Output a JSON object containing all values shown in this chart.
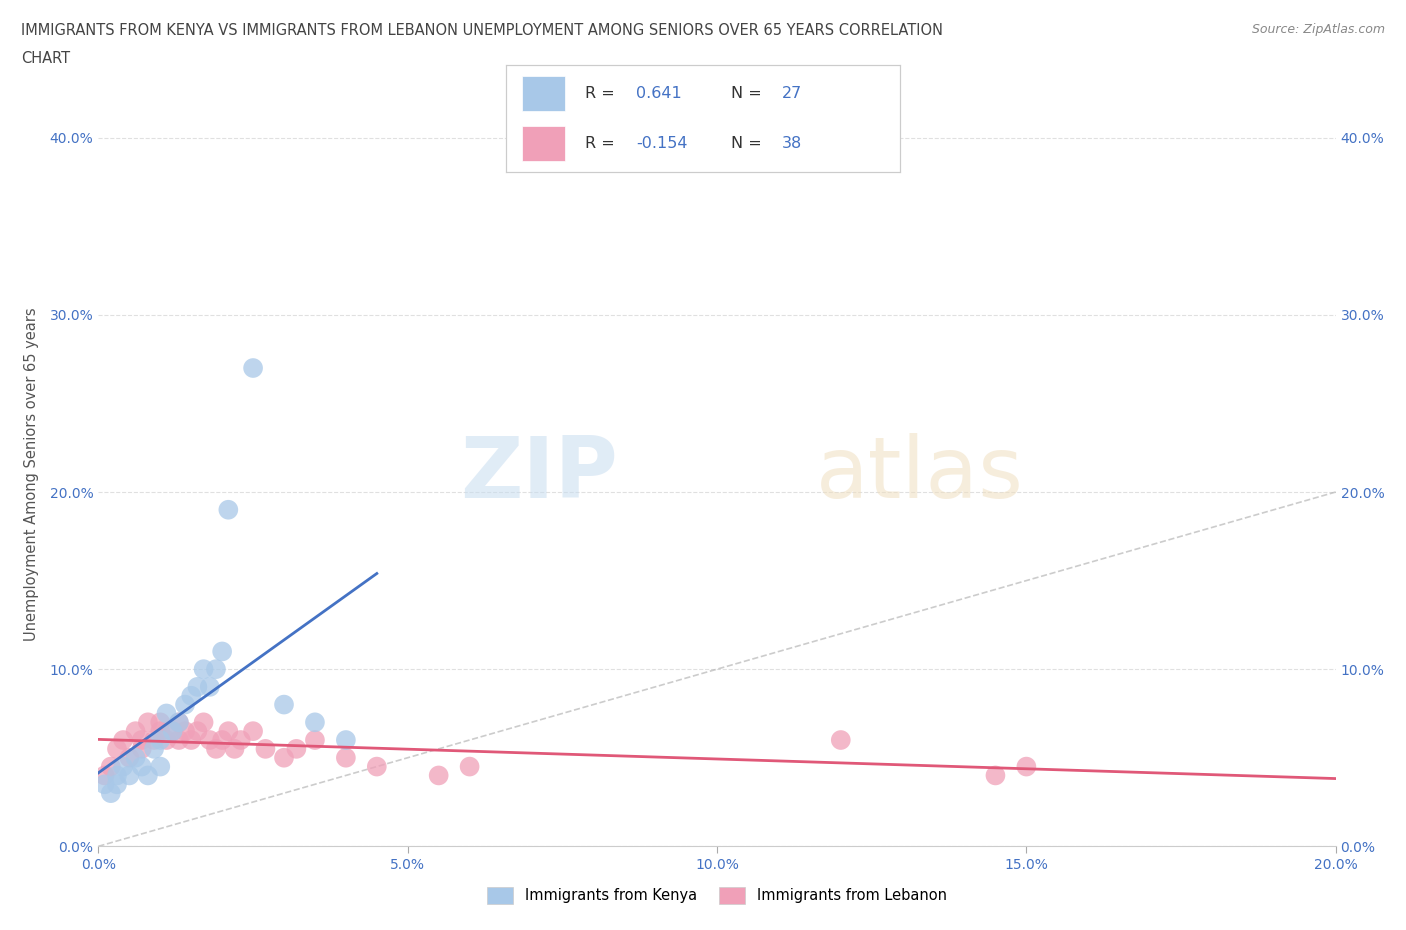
{
  "title_line1": "IMMIGRANTS FROM KENYA VS IMMIGRANTS FROM LEBANON UNEMPLOYMENT AMONG SENIORS OVER 65 YEARS CORRELATION",
  "title_line2": "CHART",
  "source": "Source: ZipAtlas.com",
  "ylabel": "Unemployment Among Seniors over 65 years",
  "xlim": [
    0.0,
    0.2
  ],
  "ylim": [
    0.0,
    0.42
  ],
  "xticks": [
    0.0,
    0.05,
    0.1,
    0.15,
    0.2
  ],
  "xtick_labels": [
    "0.0%",
    "5.0%",
    "10.0%",
    "15.0%",
    "20.0%"
  ],
  "yticks": [
    0.0,
    0.1,
    0.2,
    0.3,
    0.4
  ],
  "ytick_labels": [
    "0.0%",
    "10.0%",
    "20.0%",
    "30.0%",
    "40.0%"
  ],
  "kenya_color": "#a8c8e8",
  "lebanon_color": "#f0a0b8",
  "kenya_R": 0.641,
  "kenya_N": 27,
  "lebanon_R": -0.154,
  "lebanon_N": 38,
  "kenya_line_color": "#4472c4",
  "lebanon_line_color": "#e05878",
  "diagonal_color": "#aaaaaa",
  "kenya_x": [
    0.001,
    0.002,
    0.003,
    0.003,
    0.004,
    0.005,
    0.006,
    0.007,
    0.008,
    0.009,
    0.01,
    0.01,
    0.011,
    0.012,
    0.013,
    0.014,
    0.015,
    0.016,
    0.017,
    0.018,
    0.019,
    0.02,
    0.021,
    0.025,
    0.03,
    0.035,
    0.04
  ],
  "kenya_y": [
    0.035,
    0.03,
    0.04,
    0.035,
    0.045,
    0.04,
    0.05,
    0.045,
    0.04,
    0.055,
    0.06,
    0.045,
    0.075,
    0.065,
    0.07,
    0.08,
    0.085,
    0.09,
    0.1,
    0.09,
    0.1,
    0.11,
    0.19,
    0.27,
    0.08,
    0.07,
    0.06
  ],
  "lebanon_x": [
    0.001,
    0.002,
    0.003,
    0.004,
    0.005,
    0.006,
    0.007,
    0.007,
    0.008,
    0.009,
    0.01,
    0.01,
    0.011,
    0.012,
    0.013,
    0.013,
    0.014,
    0.015,
    0.016,
    0.017,
    0.018,
    0.019,
    0.02,
    0.021,
    0.022,
    0.023,
    0.025,
    0.027,
    0.03,
    0.032,
    0.035,
    0.04,
    0.045,
    0.055,
    0.06,
    0.12,
    0.145,
    0.15
  ],
  "lebanon_y": [
    0.04,
    0.045,
    0.055,
    0.06,
    0.05,
    0.065,
    0.055,
    0.06,
    0.07,
    0.06,
    0.065,
    0.07,
    0.06,
    0.065,
    0.06,
    0.07,
    0.065,
    0.06,
    0.065,
    0.07,
    0.06,
    0.055,
    0.06,
    0.065,
    0.055,
    0.06,
    0.065,
    0.055,
    0.05,
    0.055,
    0.06,
    0.05,
    0.045,
    0.04,
    0.045,
    0.06,
    0.04,
    0.045
  ]
}
